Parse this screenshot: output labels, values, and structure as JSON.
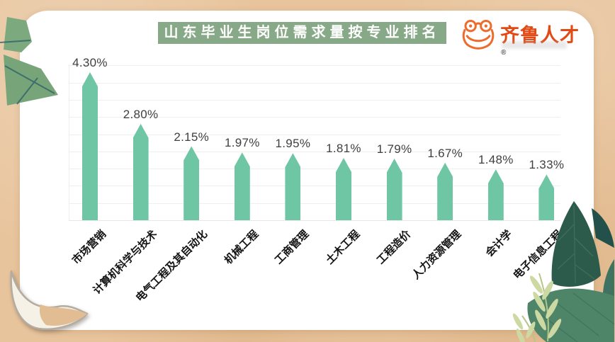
{
  "page": {
    "background_color": "#e8c49c",
    "card_color": "#ffffff"
  },
  "header": {
    "title": "山东毕业生岗位需求量按专业排名",
    "band_color": "#88a988",
    "text_color": "#ffffff"
  },
  "logo": {
    "brand": "齐鲁人才",
    "registered_mark": "®",
    "brand_color": "#e24a15",
    "frog_icon_color": "#ed6c2d"
  },
  "decorations": {
    "top_left": "leaf-illustration",
    "bottom_left": "page-curl-illustration",
    "bottom_right": "tropical-leaves-illustration"
  },
  "chart_data": {
    "type": "bar",
    "title": "山东毕业生岗位需求量按专业排名",
    "categories": [
      "市场营销",
      "计算机科学与技术",
      "电气工程及其自动化",
      "机械工程",
      "工商管理",
      "土木工程",
      "工程造价",
      "人力资源管理",
      "会计学",
      "电子信息工程"
    ],
    "values": [
      4.3,
      2.8,
      2.15,
      1.97,
      1.95,
      1.81,
      1.79,
      1.67,
      1.48,
      1.33
    ],
    "labels": [
      "4.30%",
      "2.80%",
      "2.15%",
      "1.97%",
      "1.95%",
      "1.81%",
      "1.79%",
      "1.67%",
      "1.48%",
      "1.33%"
    ],
    "unit": "%",
    "bar_color": "#6ec6a4",
    "ylim": [
      0,
      4.5
    ],
    "gridline_step": 0.5,
    "grid": true,
    "legend": false,
    "xlabel": "",
    "ylabel": ""
  }
}
